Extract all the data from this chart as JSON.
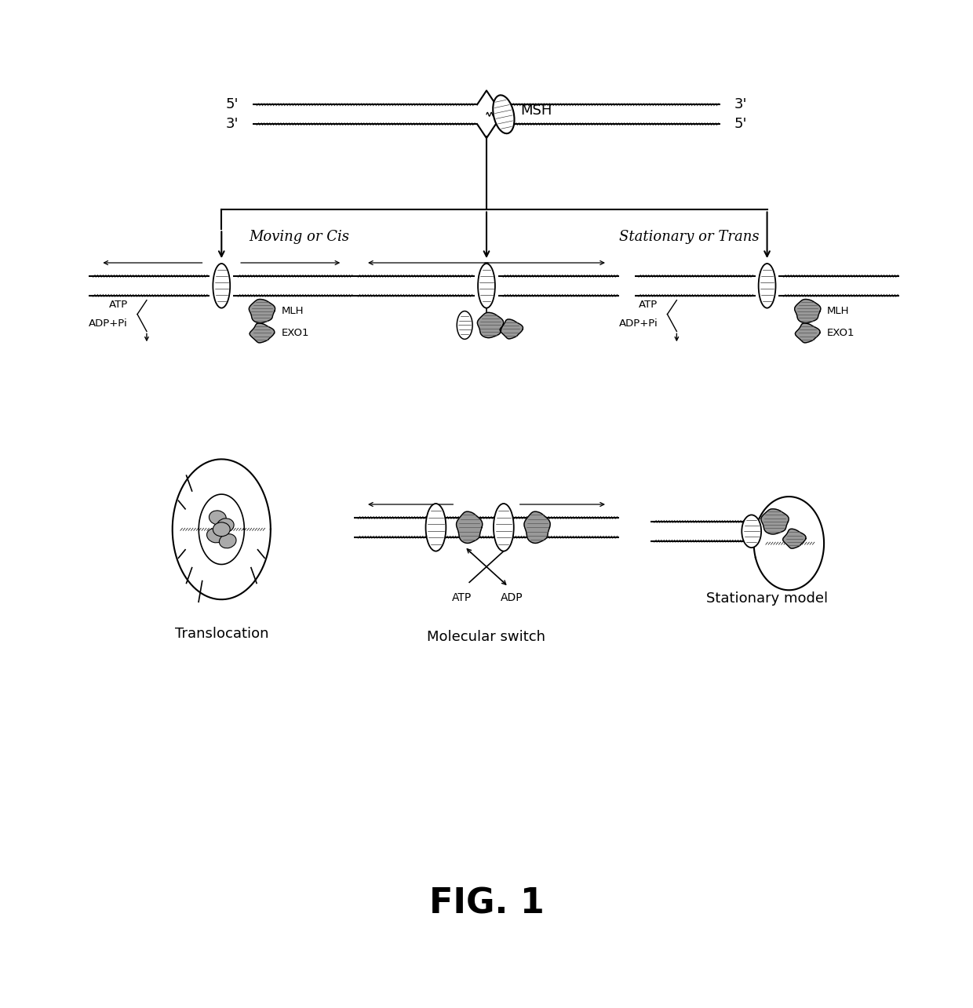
{
  "bg_color": "#ffffff",
  "title": "FIG. 1",
  "title_fontsize": 32,
  "title_fontweight": "bold",
  "label_moving_cis": "Moving or Cis",
  "label_stationary_trans": "Stationary or Trans",
  "label_msh": "MSH",
  "label_mlh": "MLH",
  "label_exo1": "EXO1",
  "label_atp": "ATP",
  "label_adppi": "ADP+Pi",
  "label_translocation": "Translocation",
  "label_molecular_switch": "Molecular switch",
  "label_stationary_model": "Stationary model",
  "label_atp2": "ATP",
  "label_adp": "ADP",
  "label_5prime_top": "5'",
  "label_3prime_top": "3'",
  "label_3prime_bot": "3'",
  "label_5prime_bot": "5'",
  "line_color": "#000000",
  "fig_width": 12.4,
  "fig_height": 12.85
}
